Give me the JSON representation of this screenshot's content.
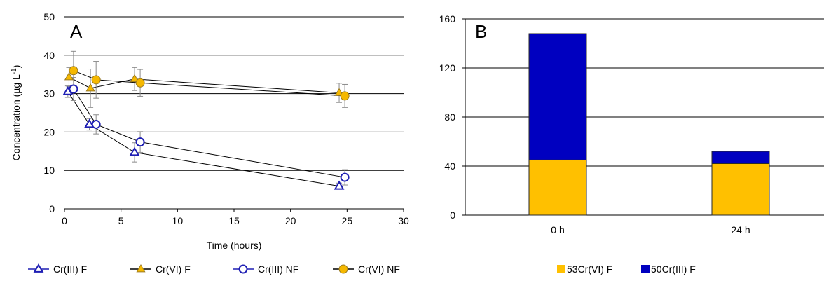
{
  "chart_data": [
    {
      "type": "line",
      "panel_label": "A",
      "xlabel": "Time (hours)",
      "ylabel": "Concentration (µg L",
      "ylabel_sup": "-1",
      "ylabel_end": ")",
      "xlim": [
        0,
        30
      ],
      "ylim": [
        0,
        50
      ],
      "x_ticks": [
        0,
        5,
        10,
        15,
        20,
        25,
        30
      ],
      "y_ticks": [
        0,
        10,
        20,
        30,
        40,
        50
      ],
      "grid": "horizontal",
      "legend_position": "bottom",
      "series": [
        {
          "name": "Cr(III) F",
          "color": "#1f1fb4",
          "marker": "triangle-open",
          "points": [
            {
              "x": 0.3,
              "y": 30.5,
              "err": 1.5
            },
            {
              "x": 2.2,
              "y": 22.0,
              "err": 1.5
            },
            {
              "x": 6.2,
              "y": 14.7,
              "err": 2.5
            },
            {
              "x": 24.3,
              "y": 5.9,
              "err": 0.8
            }
          ]
        },
        {
          "name": "Cr(VI) F",
          "color": "#f5b800",
          "marker": "triangle-filled",
          "points": [
            {
              "x": 0.4,
              "y": 34.3,
              "err": 2.5
            },
            {
              "x": 2.3,
              "y": 31.4,
              "err": 5.0
            },
            {
              "x": 6.2,
              "y": 33.8,
              "err": 3.0
            },
            {
              "x": 24.3,
              "y": 30.2,
              "err": 2.5
            }
          ]
        },
        {
          "name": "Cr(III) NF",
          "color": "#1f1fb4",
          "marker": "circle-open",
          "points": [
            {
              "x": 0.8,
              "y": 31.2,
              "err": 3.0
            },
            {
              "x": 2.8,
              "y": 22.0,
              "err": 2.5
            },
            {
              "x": 6.7,
              "y": 17.4,
              "err": 2.7
            },
            {
              "x": 24.8,
              "y": 8.2,
              "err": 2.0
            }
          ]
        },
        {
          "name": "Cr(VI) NF",
          "color": "#f5b800",
          "marker": "circle-filled",
          "points": [
            {
              "x": 0.8,
              "y": 36.0,
              "err": 5.0
            },
            {
              "x": 2.8,
              "y": 33.6,
              "err": 4.8
            },
            {
              "x": 6.7,
              "y": 32.8,
              "err": 3.5
            },
            {
              "x": 24.8,
              "y": 29.4,
              "err": 3.0
            }
          ]
        }
      ]
    },
    {
      "type": "bar",
      "stacked": true,
      "panel_label": "B",
      "categories": [
        "0 h",
        "24 h"
      ],
      "ylim": [
        0,
        160
      ],
      "y_ticks": [
        0,
        40,
        80,
        120,
        160
      ],
      "grid": "horizontal",
      "legend_position": "bottom",
      "series": [
        {
          "name": "53Cr(VI) F",
          "color": "#ffc000",
          "values": [
            45,
            42
          ]
        },
        {
          "name": "50Cr(III) F",
          "color": "#0000c0",
          "values": [
            103,
            10
          ]
        }
      ]
    }
  ]
}
